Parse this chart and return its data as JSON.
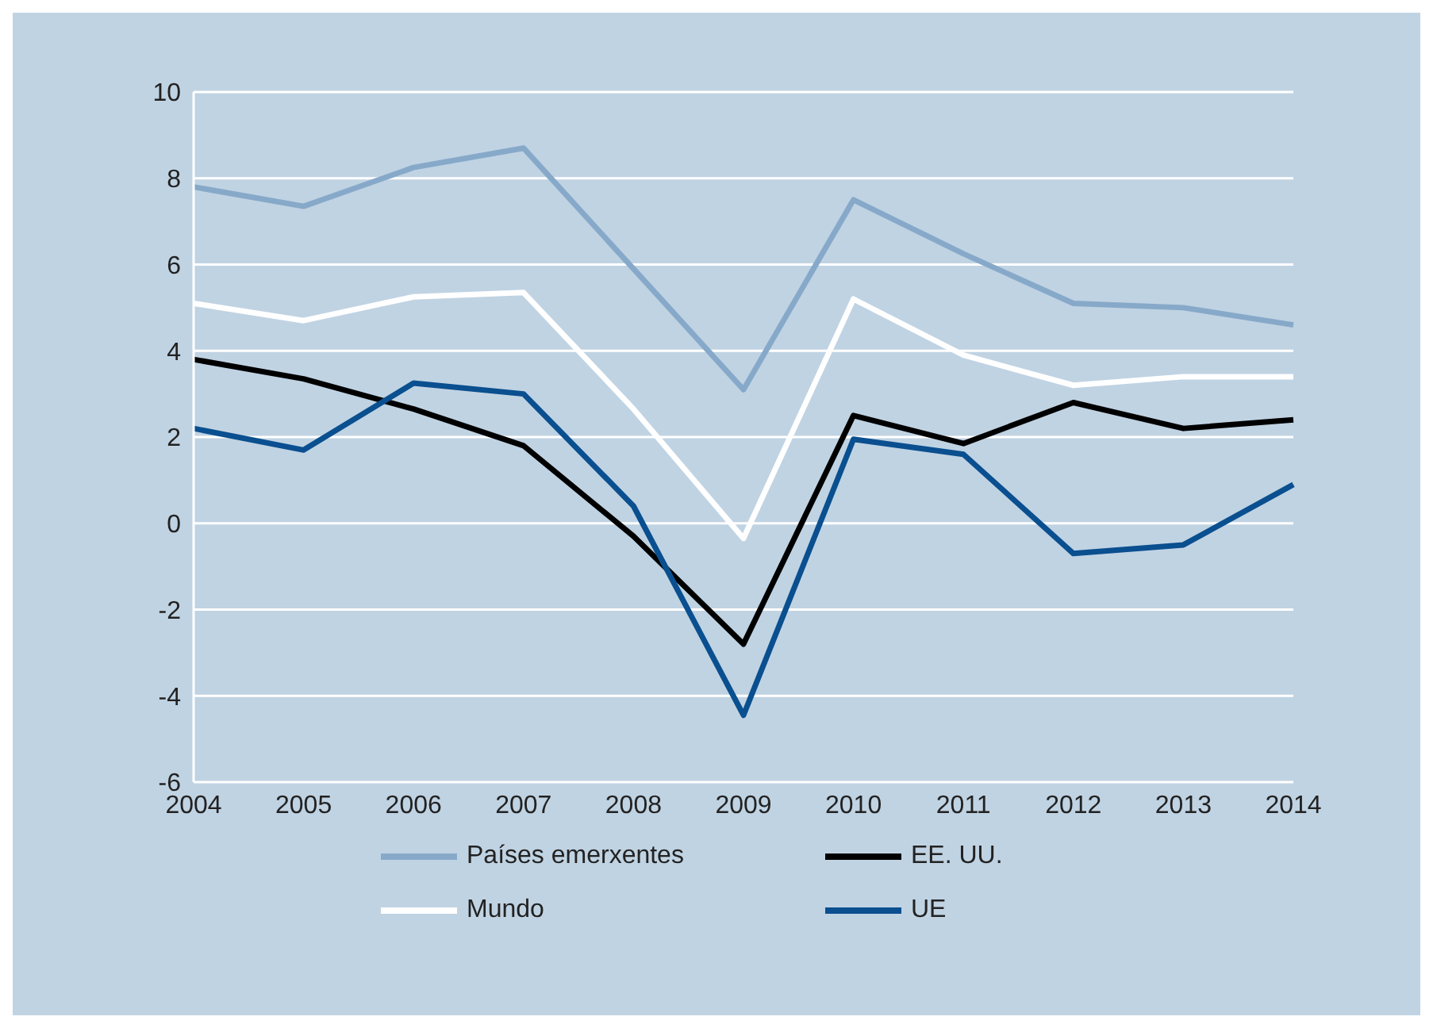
{
  "chart_data": {
    "type": "line",
    "categories": [
      "2004",
      "2005",
      "2006",
      "2007",
      "2008",
      "2009",
      "2010",
      "2011",
      "2012",
      "2013",
      "2014"
    ],
    "series": [
      {
        "name": "Países emerxentes",
        "color": "#87a9c9",
        "values": [
          7.8,
          7.35,
          8.25,
          8.7,
          5.9,
          3.1,
          7.5,
          6.25,
          5.1,
          5.0,
          4.6
        ]
      },
      {
        "name": "Mundo",
        "color": "#ffffff",
        "values": [
          5.1,
          4.7,
          5.25,
          5.35,
          2.65,
          -0.35,
          5.2,
          3.9,
          3.2,
          3.4,
          3.4
        ]
      },
      {
        "name": "EE. UU.",
        "color": "#000000",
        "values": [
          3.8,
          3.35,
          2.65,
          1.8,
          -0.3,
          -2.8,
          2.5,
          1.85,
          2.8,
          2.2,
          2.4
        ]
      },
      {
        "name": "UE",
        "color": "#0a4f8f",
        "values": [
          2.2,
          1.7,
          3.25,
          3.0,
          0.4,
          -4.45,
          1.95,
          1.6,
          -0.7,
          -0.5,
          0.9
        ]
      }
    ],
    "ylim": [
      -6,
      10
    ],
    "yticks": [
      -6,
      -4,
      -2,
      0,
      2,
      4,
      6,
      8,
      10
    ],
    "grid": "y",
    "legend": "bottom",
    "marker": "none",
    "line_style": "solid"
  }
}
